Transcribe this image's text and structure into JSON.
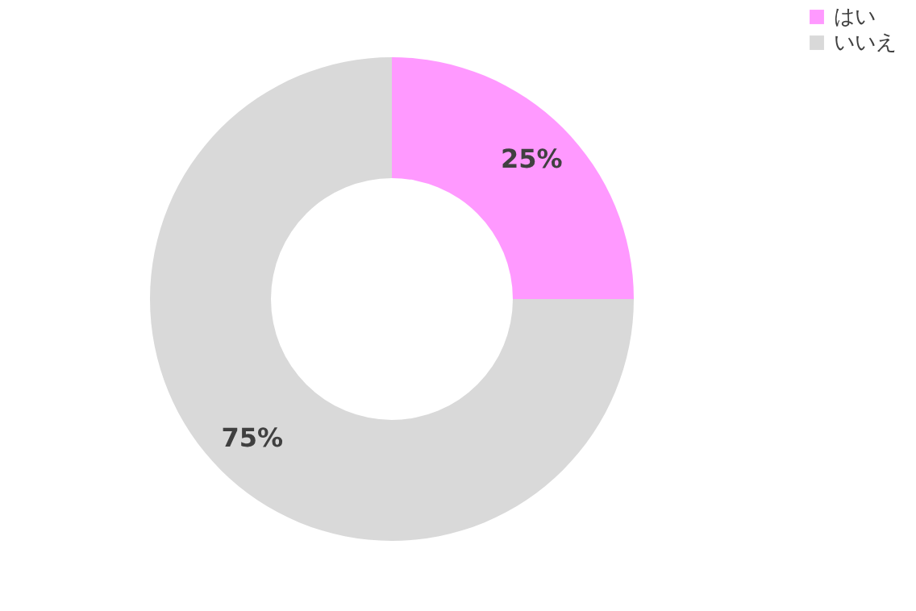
{
  "chart_data": {
    "type": "donut",
    "categories": [
      "はい",
      "いいえ"
    ],
    "values": [
      25,
      75
    ],
    "colors": [
      "#ff99ff",
      "#d9d9d9"
    ],
    "value_labels": [
      "25%",
      "75%"
    ],
    "legend": "right"
  }
}
